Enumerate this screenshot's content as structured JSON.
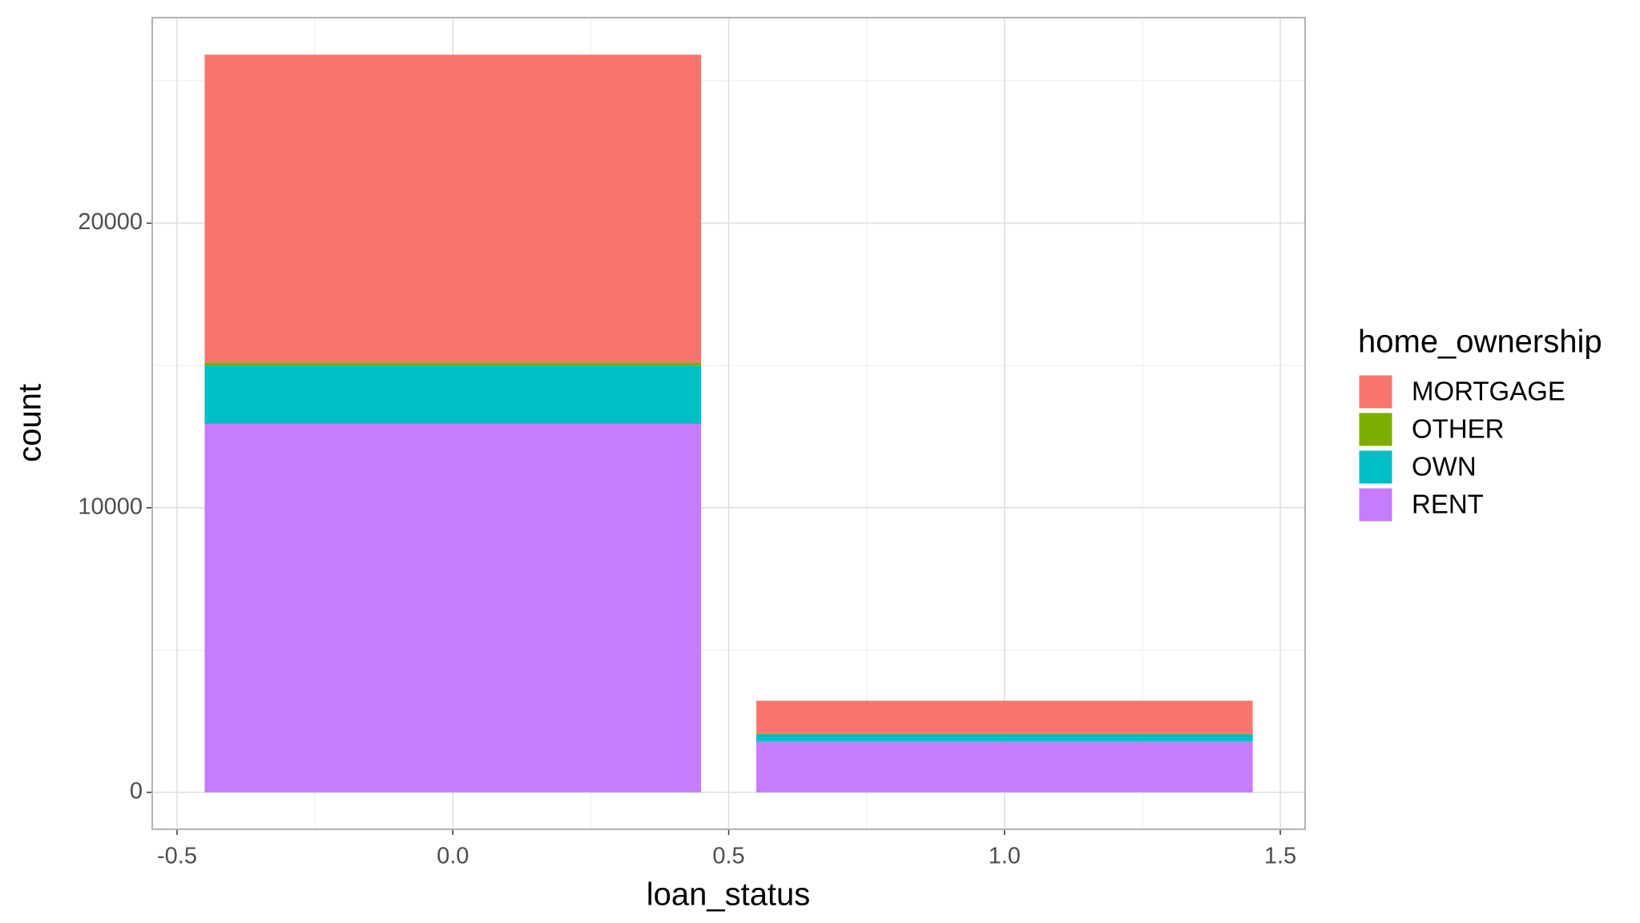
{
  "chart_data": {
    "type": "bar",
    "stacked": true,
    "x_label": "loan_status",
    "y_label": "count",
    "legend_title": "home_ownership",
    "x": [
      0,
      1
    ],
    "bar_width": 0.9,
    "series": [
      {
        "name": "MORTGAGE",
        "color": "#f8766d",
        "values": [
          10820,
          1160
        ]
      },
      {
        "name": "OTHER",
        "color": "#7cae00",
        "values": [
          100,
          20
        ]
      },
      {
        "name": "OWN",
        "color": "#00bfc4",
        "values": [
          2050,
          260
        ]
      },
      {
        "name": "RENT",
        "color": "#c77cff",
        "values": [
          12950,
          1780
        ]
      }
    ],
    "xlim": [
      -0.545,
      1.545
    ],
    "xticks": [
      -0.5,
      {
        "value": 0,
        "label": "0.0"
      },
      0.5,
      {
        "value": 1,
        "label": "1.0"
      },
      1.5
    ],
    "minor_xticks": [
      -0.25,
      0.25,
      0.75,
      1.25
    ],
    "ylim": [
      -1296,
      27222
    ],
    "yticks": [
      0,
      10000,
      20000
    ],
    "minor_yticks": [
      5000,
      15000,
      25000
    ],
    "grid": true,
    "legend": "right"
  }
}
